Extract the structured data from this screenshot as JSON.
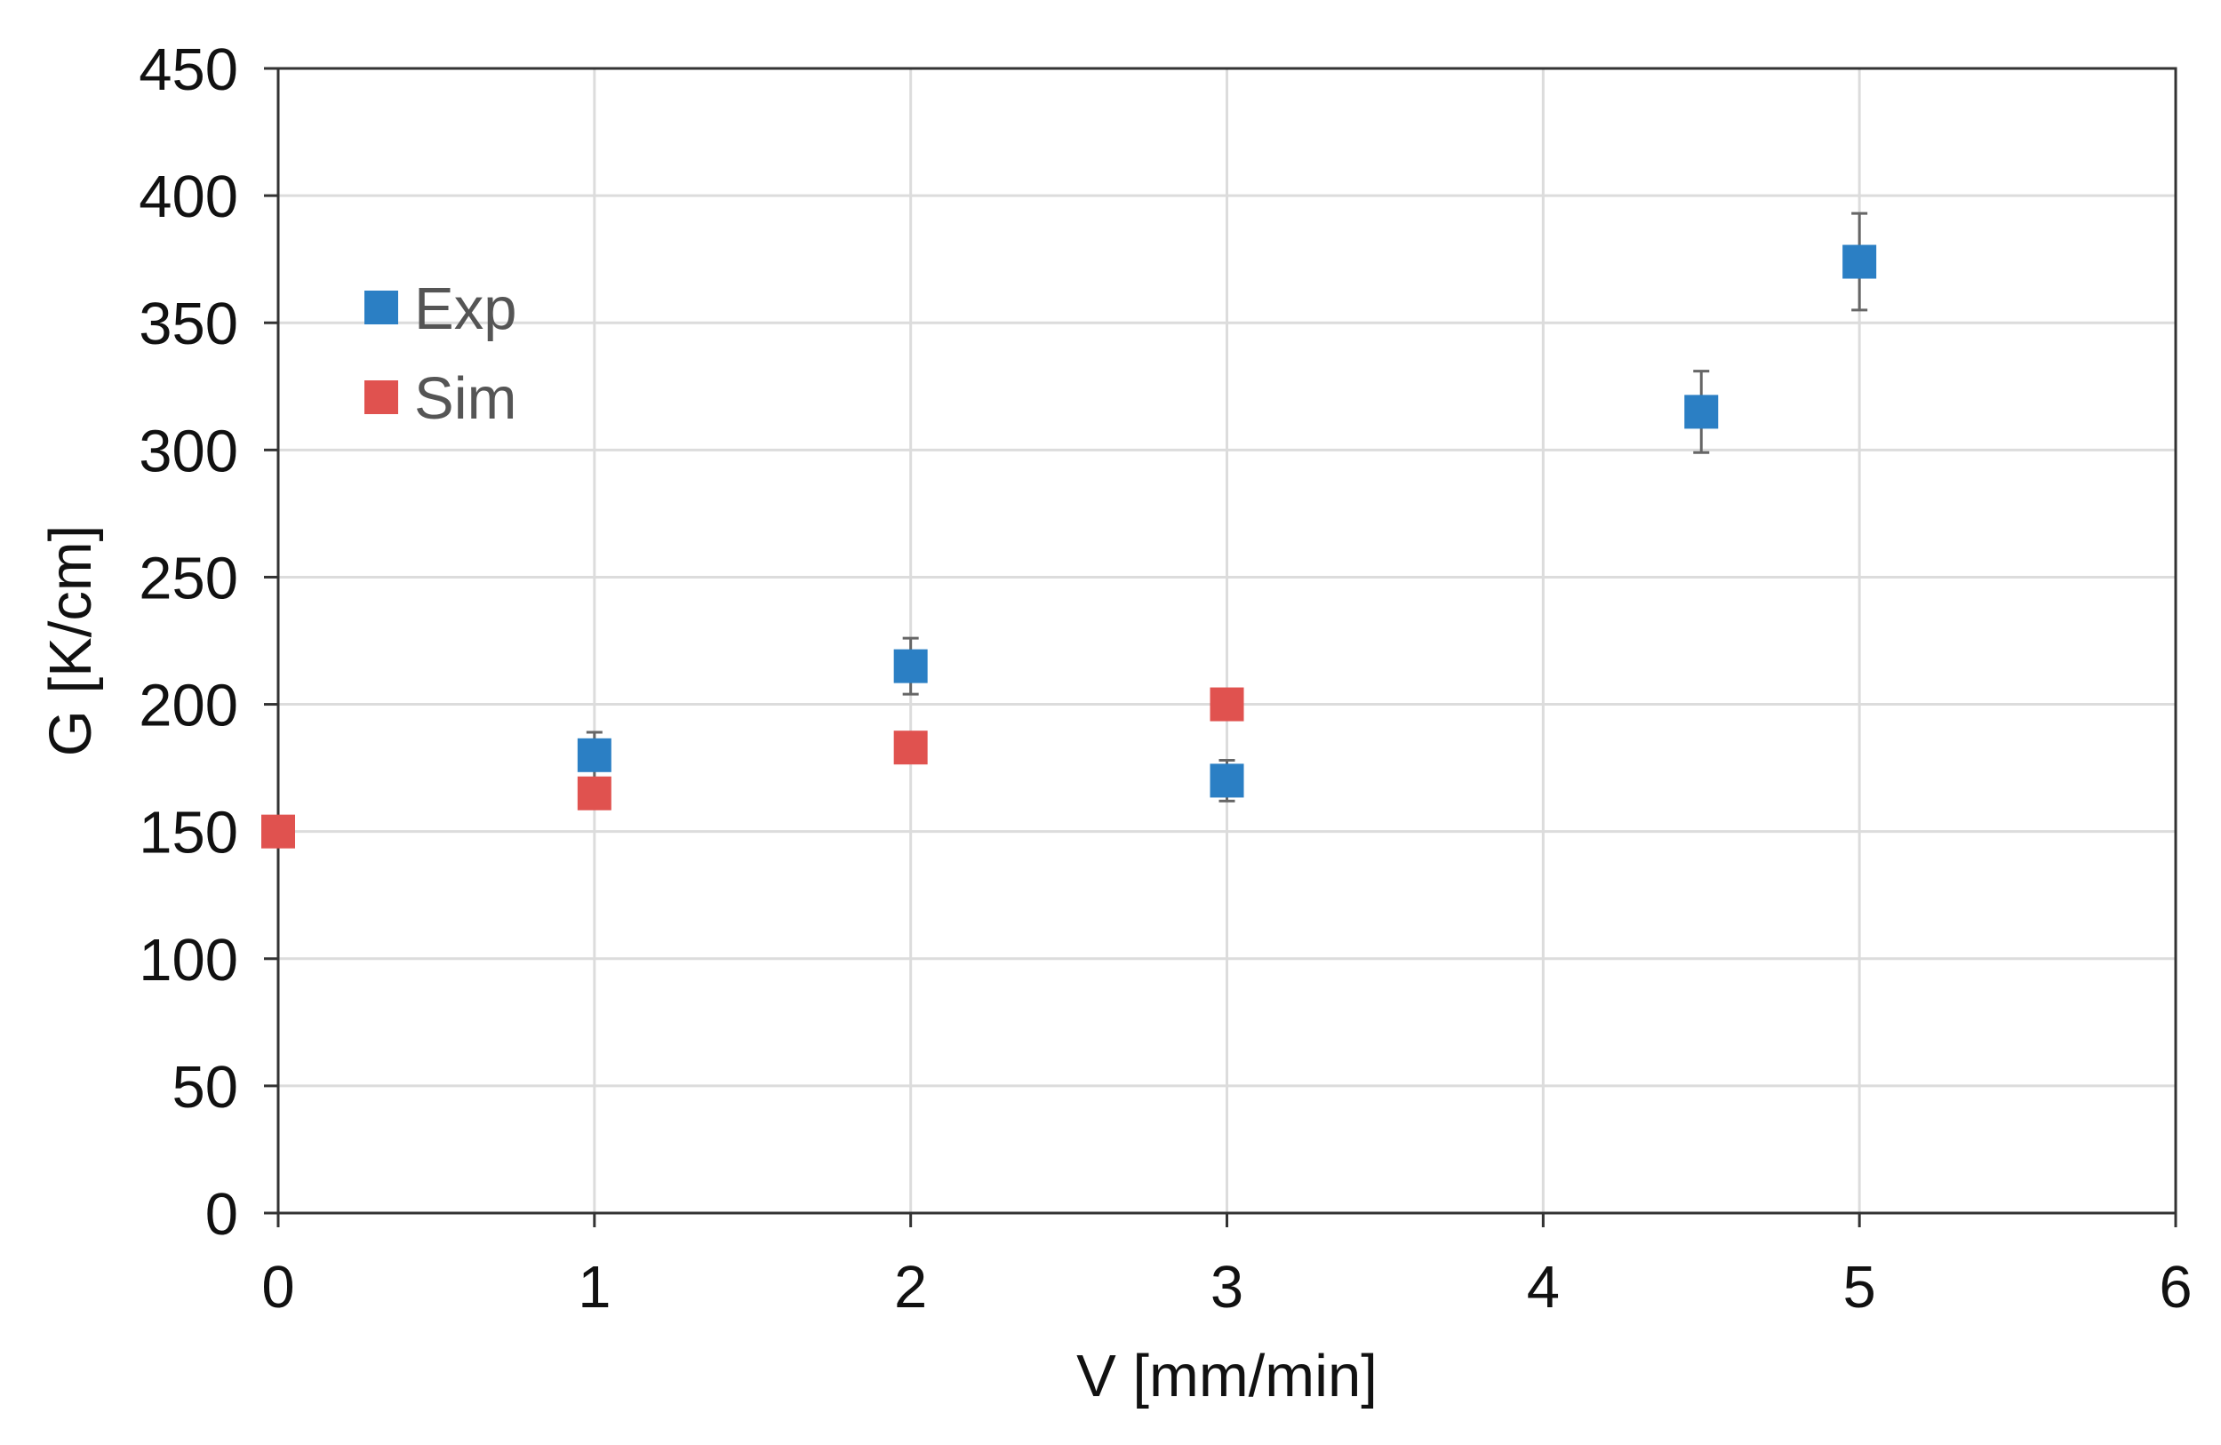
{
  "chart_data": {
    "type": "scatter",
    "title": "",
    "xlabel": "V [mm/min]",
    "ylabel": "G [K/cm]",
    "xlim": [
      0,
      6
    ],
    "ylim": [
      0,
      450
    ],
    "x_ticks": [
      "0",
      "1",
      "2",
      "3",
      "4",
      "5",
      "6"
    ],
    "y_ticks": [
      "0",
      "50",
      "100",
      "150",
      "200",
      "250",
      "300",
      "350",
      "400",
      "450"
    ],
    "grid": true,
    "legend_position": "top-left",
    "series": [
      {
        "name": "Exp",
        "color": "#2b7fc4",
        "marker": "square",
        "points": [
          {
            "x": 1,
            "y": 180,
            "err": 9
          },
          {
            "x": 2,
            "y": 215,
            "err": 11
          },
          {
            "x": 3,
            "y": 170,
            "err": 8
          },
          {
            "x": 4.5,
            "y": 315,
            "err": 16
          },
          {
            "x": 5,
            "y": 374,
            "err": 19
          }
        ]
      },
      {
        "name": "Sim",
        "color": "#e0524f",
        "marker": "square",
        "points": [
          {
            "x": 0,
            "y": 150
          },
          {
            "x": 1,
            "y": 165
          },
          {
            "x": 2,
            "y": 183
          },
          {
            "x": 3,
            "y": 200
          }
        ]
      }
    ]
  }
}
